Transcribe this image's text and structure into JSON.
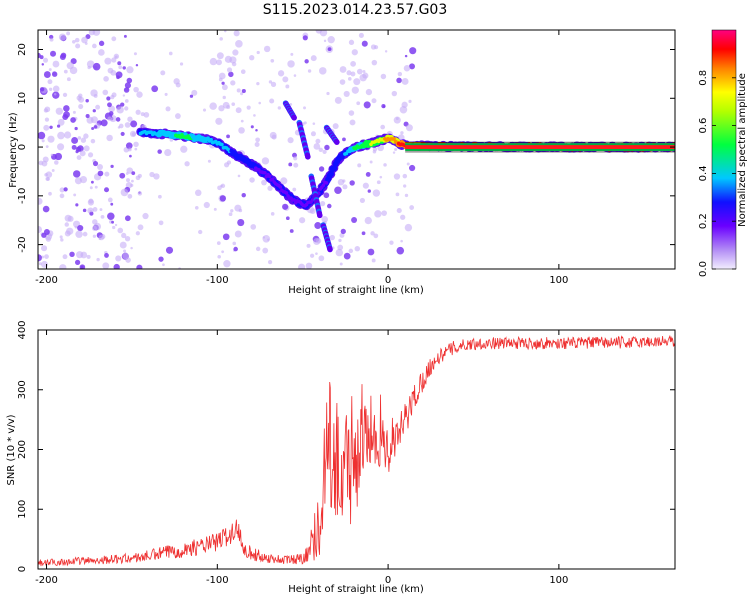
{
  "title": "S115.2023.014.23.57.G03",
  "chart_data": [
    {
      "type": "heatmap",
      "xlabel": "Height of straight line (km)",
      "ylabel": "Frequency (Hz)",
      "xlim": [
        -205,
        168
      ],
      "ylim": [
        -25,
        24
      ],
      "xticks": [
        -200,
        -100,
        0,
        100
      ],
      "yticks": [
        -20,
        -10,
        0,
        10,
        20
      ],
      "colorbar": {
        "label": "Normalized spectral amplitude",
        "range": [
          0,
          1
        ],
        "ticks": [
          0.0,
          0.2,
          0.4,
          0.6,
          0.8
        ],
        "colors": [
          "#e8ddfa",
          "#a070f0",
          "#6600ff",
          "#0000ff",
          "#00c8ff",
          "#00ff40",
          "#ffff00",
          "#ff8000",
          "#ff0000",
          "#ff0080"
        ]
      },
      "ridge": {
        "x": [
          -145,
          -135,
          -125,
          -115,
          -105,
          -98,
          -92,
          -85,
          -78,
          -70,
          -63,
          -55,
          -48,
          -42,
          -36,
          -30,
          -26,
          -22,
          -18,
          -14,
          -10,
          -6,
          -2,
          2,
          6,
          10,
          20,
          50,
          100,
          168
        ],
        "y": [
          3,
          2.8,
          2.5,
          2,
          1.5,
          0.5,
          -1,
          -2.5,
          -4,
          -6,
          -8.5,
          -11,
          -12,
          -10,
          -7,
          -3,
          -1.5,
          -0.8,
          0,
          0.5,
          0.8,
          1.2,
          1.6,
          1.8,
          0.8,
          0.3,
          0.2,
          0.1,
          0,
          0
        ],
        "amplitude": [
          0.45,
          0.5,
          0.55,
          0.55,
          0.5,
          0.45,
          0.4,
          0.35,
          0.3,
          0.25,
          0.25,
          0.2,
          0.2,
          0.25,
          0.3,
          0.35,
          0.4,
          0.5,
          0.6,
          0.65,
          0.7,
          0.75,
          0.8,
          0.85,
          0.9,
          0.95,
          1.0,
          1.0,
          1.0,
          1.0
        ]
      }
    },
    {
      "type": "line",
      "xlabel": "Height of straight line (km)",
      "ylabel": "SNR (10 * v/v)",
      "xlim": [
        -205,
        168
      ],
      "ylim": [
        0,
        400
      ],
      "xticks": [
        -200,
        -100,
        0,
        100
      ],
      "yticks": [
        0,
        100,
        200,
        300,
        400
      ],
      "series": [
        {
          "color": "#ee3030",
          "x": [
            -205,
            -190,
            -170,
            -150,
            -140,
            -130,
            -120,
            -110,
            -100,
            -95,
            -90,
            -88,
            -85,
            -80,
            -70,
            -60,
            -50,
            -45,
            -40,
            -38,
            -35,
            -33,
            -30,
            -28,
            -25,
            -22,
            -20,
            -15,
            -10,
            -5,
            0,
            5,
            10,
            15,
            20,
            25,
            30,
            35,
            40,
            45,
            50,
            60,
            70,
            80,
            90,
            100,
            110,
            120,
            130,
            140,
            150,
            160,
            168
          ],
          "y": [
            10,
            12,
            15,
            18,
            22,
            28,
            32,
            38,
            45,
            55,
            60,
            70,
            40,
            25,
            18,
            15,
            18,
            40,
            80,
            150,
            250,
            170,
            200,
            140,
            200,
            150,
            160,
            210,
            230,
            220,
            200,
            215,
            250,
            285,
            315,
            340,
            355,
            365,
            372,
            375,
            377,
            378,
            378,
            378,
            378,
            378,
            378,
            379,
            379,
            379,
            380,
            381,
            381
          ],
          "spread": [
            6,
            6,
            7,
            8,
            10,
            12,
            13,
            14,
            16,
            18,
            20,
            20,
            16,
            12,
            8,
            8,
            10,
            30,
            60,
            90,
            110,
            100,
            110,
            110,
            110,
            90,
            80,
            70,
            60,
            50,
            40,
            35,
            30,
            25,
            20,
            15,
            12,
            12,
            12,
            10,
            10,
            10,
            10,
            10,
            10,
            10,
            10,
            10,
            10,
            10,
            10,
            10,
            10
          ]
        }
      ]
    }
  ]
}
